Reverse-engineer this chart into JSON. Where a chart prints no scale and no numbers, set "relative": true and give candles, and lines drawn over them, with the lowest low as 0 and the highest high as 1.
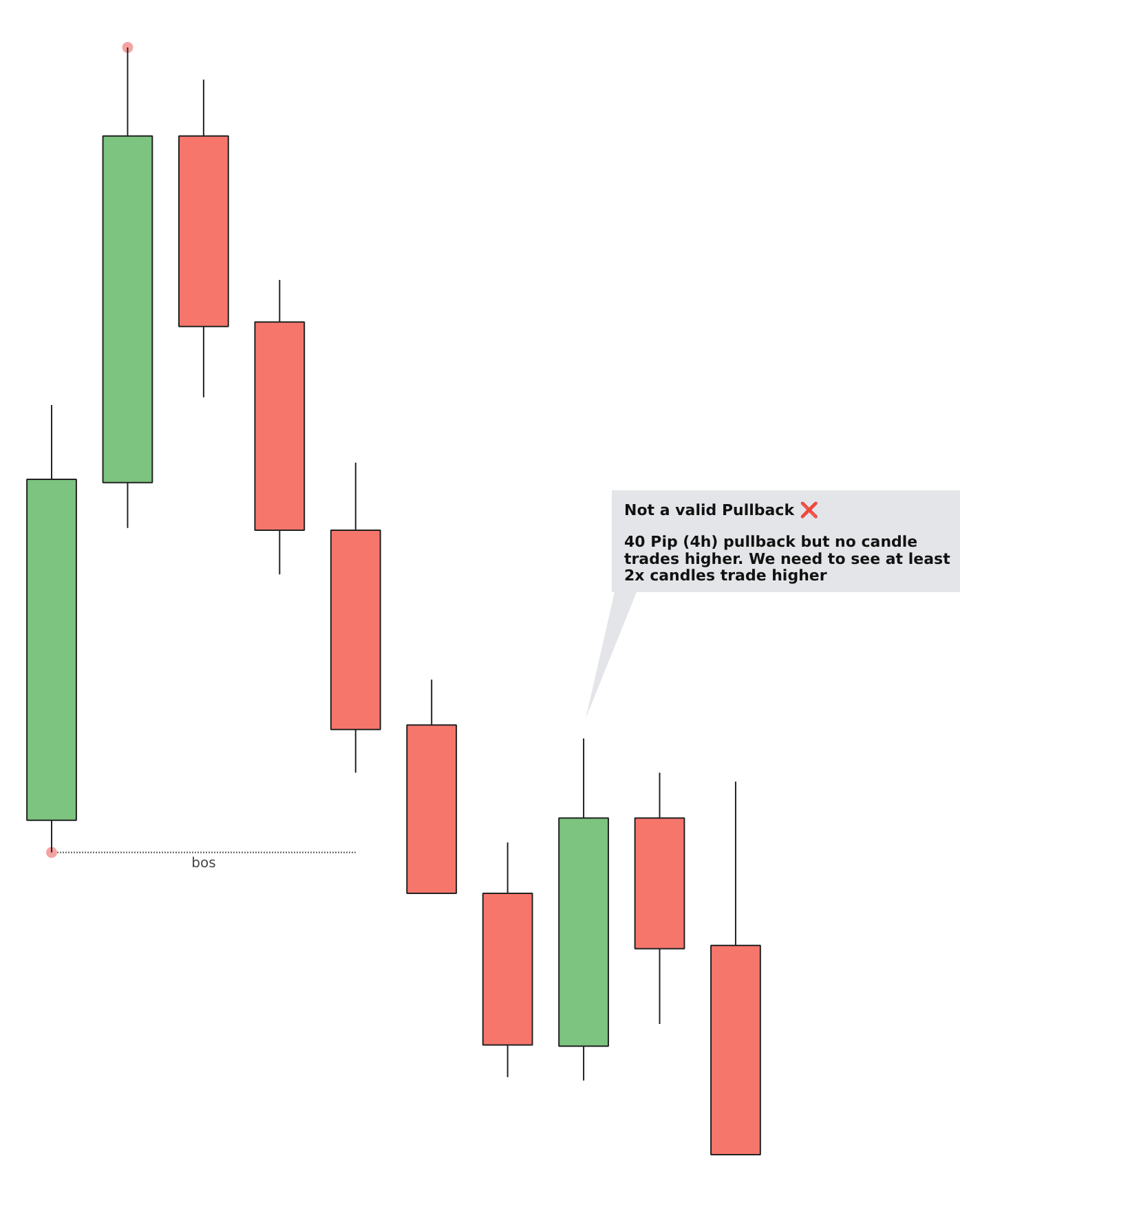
{
  "chart_data": {
    "type": "candlestick",
    "relative": true,
    "categories": [
      null,
      null,
      null,
      null,
      null,
      null,
      null,
      null,
      null,
      null
    ],
    "ohlc": [
      [
        0.302,
        0.677,
        0.273,
        0.61
      ],
      [
        0.607,
        1.0,
        0.566,
        0.92
      ],
      [
        0.92,
        0.971,
        0.684,
        0.748
      ],
      [
        0.752,
        0.79,
        0.524,
        0.564
      ],
      [
        0.564,
        0.625,
        0.345,
        0.384
      ],
      [
        0.388,
        0.429,
        0.236,
        0.236
      ],
      [
        0.236,
        0.282,
        0.07,
        0.099
      ],
      [
        0.098,
        0.376,
        0.067,
        0.304
      ],
      [
        0.304,
        0.345,
        0.118,
        0.186
      ],
      [
        0.189,
        0.337,
        0.0,
        0.0
      ]
    ],
    "colors": [
      "#7cc47f",
      "#7cc47f",
      "#f7766c",
      "#f7766c",
      "#f7766c",
      "#f7766c",
      "#f7766c",
      "#7cc47f",
      "#f7766c",
      "#f7766c"
    ],
    "series": [
      {
        "type": "line",
        "name": "bos",
        "color": "#555555",
        "line_style": "dotted",
        "marker": "none",
        "values": [
          0.273,
          0.273,
          0.273,
          0.273,
          0.273,
          null,
          null,
          null,
          null,
          null
        ]
      },
      {
        "type": "scatter",
        "color": "#f4a3a3",
        "marker": "circle",
        "values": [
          0.273,
          1.0,
          null,
          null,
          null,
          null,
          null,
          null,
          null,
          null
        ]
      }
    ],
    "annotations": [
      "Not a valid Pullback ❌",
      "40 Pip (4h) pullback but no candle\ntrades higher. We need to see at least\n2x candles trade higher"
    ],
    "grid": false
  }
}
